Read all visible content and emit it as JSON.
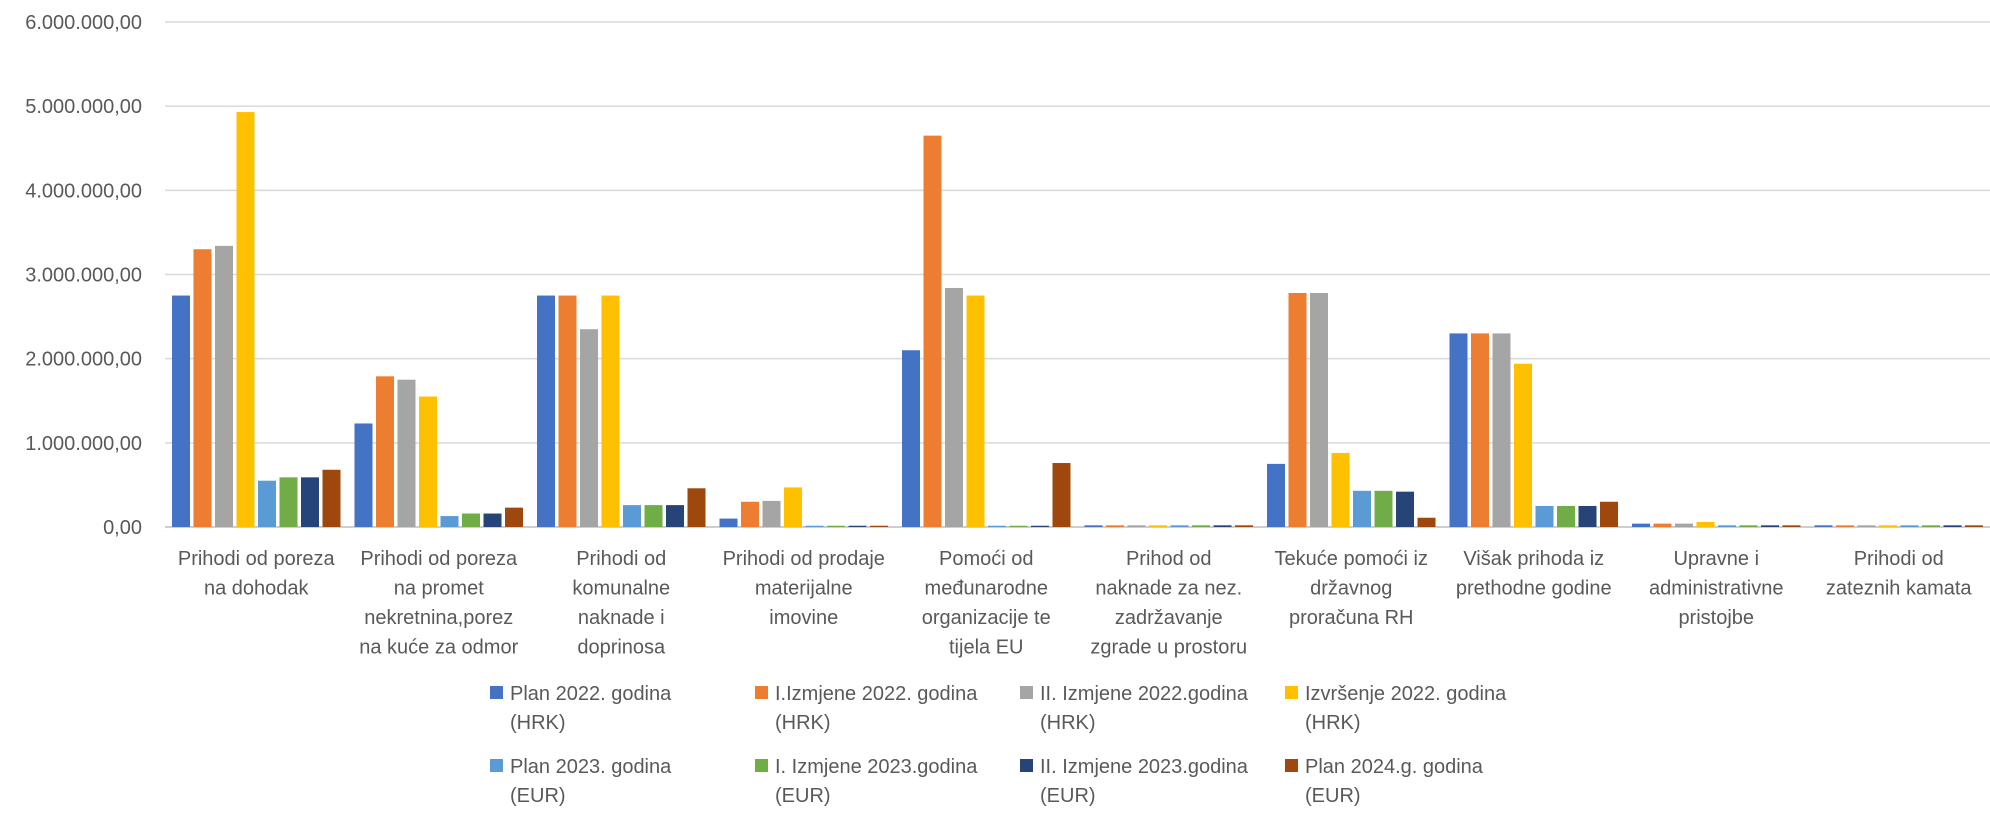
{
  "chart_data": {
    "type": "bar",
    "categories": [
      [
        "Prihodi od poreza",
        "na dohodak"
      ],
      [
        "Prihodi od poreza",
        "na promet",
        "nekretnina,porez",
        "na kuće za odmor"
      ],
      [
        "Prihodi od",
        "komunalne",
        "naknade i",
        "doprinosa"
      ],
      [
        "Prihodi od prodaje",
        "materijalne",
        "imovine"
      ],
      [
        "Pomoći od",
        "međunarodne",
        "organizacije te",
        "tijela EU"
      ],
      [
        "Prihod od",
        "naknade za nez.",
        "zadržavanje",
        "zgrade u prostoru"
      ],
      [
        "Tekuće pomoći iz",
        "državnog",
        "proračuna RH"
      ],
      [
        "Višak prihoda iz",
        "prethodne godine"
      ],
      [
        "Upravne i",
        "administrativne",
        "pristojbe"
      ],
      [
        "Prihodi od",
        "zateznih kamata"
      ]
    ],
    "series": [
      {
        "name": [
          "Plan 2022. godina",
          "(HRK)"
        ],
        "color": "#4472C4",
        "values": [
          2750000,
          1230000,
          2750000,
          100000,
          2100000,
          20000,
          750000,
          2300000,
          40000,
          20000
        ]
      },
      {
        "name": [
          "I.Izmjene 2022. godina",
          "(HRK)"
        ],
        "color": "#ED7D31",
        "values": [
          3300000,
          1790000,
          2750000,
          300000,
          4650000,
          20000,
          2780000,
          2300000,
          40000,
          20000
        ]
      },
      {
        "name": [
          "II. Izmjene 2022.godina",
          "(HRK)"
        ],
        "color": "#A5A5A5",
        "values": [
          3340000,
          1750000,
          2350000,
          310000,
          2840000,
          20000,
          2780000,
          2300000,
          40000,
          20000
        ]
      },
      {
        "name": [
          "Izvršenje 2022. godina",
          "(HRK)"
        ],
        "color": "#FFC000",
        "values": [
          4930000,
          1550000,
          2750000,
          470000,
          2750000,
          20000,
          880000,
          1940000,
          60000,
          20000
        ]
      },
      {
        "name": [
          "Plan 2023. godina",
          "(EUR)"
        ],
        "color": "#5B9BD5",
        "values": [
          550000,
          130000,
          260000,
          15000,
          15000,
          20000,
          430000,
          250000,
          20000,
          20000
        ]
      },
      {
        "name": [
          "I. Izmjene 2023.godina",
          "(EUR)"
        ],
        "color": "#70AD47",
        "values": [
          590000,
          160000,
          260000,
          15000,
          15000,
          20000,
          430000,
          250000,
          20000,
          20000
        ]
      },
      {
        "name": [
          "II. Izmjene 2023.godina",
          "(EUR)"
        ],
        "color": "#264478",
        "values": [
          590000,
          160000,
          260000,
          15000,
          15000,
          20000,
          420000,
          250000,
          20000,
          20000
        ]
      },
      {
        "name": [
          "Plan 2024.g. godina",
          "(EUR)"
        ],
        "color": "#9E480E",
        "values": [
          680000,
          230000,
          460000,
          15000,
          760000,
          20000,
          110000,
          300000,
          20000,
          20000
        ]
      }
    ],
    "ylim": [
      0,
      6000000
    ],
    "y_ticks": [
      "0,00",
      "1.000.000,00",
      "2.000.000,00",
      "3.000.000,00",
      "4.000.000,00",
      "5.000.000,00",
      "6.000.000,00"
    ],
    "grid": true,
    "legend_position": "bottom"
  }
}
